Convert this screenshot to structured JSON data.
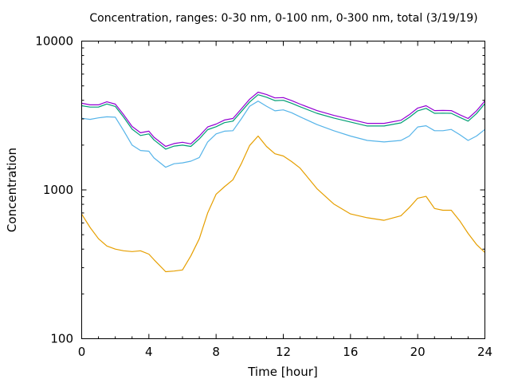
{
  "chart_data": {
    "type": "line",
    "title": "Concentration, ranges: 0-30 nm, 0-100 nm, 0-300 nm, total (3/19/19)",
    "xlabel": "Time [hour]",
    "ylabel": "Concentration",
    "xlim": [
      0,
      24
    ],
    "ylim": [
      100,
      10000
    ],
    "yscale": "log",
    "grid": false,
    "legend": "none",
    "xticks": [
      0,
      4,
      8,
      12,
      16,
      20,
      24
    ],
    "xtick_labels": [
      "0",
      "4",
      "8",
      "12",
      "16",
      "20",
      "24"
    ],
    "yticks": [
      100,
      1000,
      10000
    ],
    "ytick_labels": [
      "100",
      "1000",
      "10000"
    ],
    "x": [
      0,
      0.5,
      1,
      1.5,
      2,
      2.5,
      3,
      3.5,
      4,
      4.3,
      5,
      5.5,
      6,
      6.5,
      7,
      7.5,
      8,
      8.5,
      9,
      9.5,
      10,
      10.5,
      11,
      11.5,
      12,
      12.5,
      13,
      14,
      15,
      16,
      17,
      18,
      19,
      19.5,
      20,
      20.5,
      21,
      21.5,
      22,
      22.5,
      23,
      23.5,
      24
    ],
    "series": [
      {
        "name": "total",
        "color": "#9400d3",
        "values": [
          3820,
          3730,
          3730,
          3910,
          3770,
          3200,
          2670,
          2420,
          2480,
          2260,
          1960,
          2050,
          2090,
          2040,
          2300,
          2650,
          2770,
          2950,
          3020,
          3500,
          4070,
          4540,
          4380,
          4150,
          4170,
          3980,
          3770,
          3410,
          3170,
          2980,
          2800,
          2800,
          2940,
          3200,
          3550,
          3680,
          3410,
          3420,
          3410,
          3200,
          3020,
          3400,
          3960
        ]
      },
      {
        "name": "0-300 nm",
        "color": "#009e73",
        "values": [
          3680,
          3600,
          3600,
          3780,
          3640,
          3080,
          2560,
          2320,
          2380,
          2170,
          1880,
          1970,
          2000,
          1960,
          2200,
          2540,
          2660,
          2830,
          2900,
          3360,
          3900,
          4360,
          4200,
          3980,
          4000,
          3820,
          3620,
          3270,
          3040,
          2860,
          2690,
          2690,
          2820,
          3070,
          3400,
          3530,
          3270,
          3280,
          3270,
          3070,
          2900,
          3260,
          3800
        ]
      },
      {
        "name": "0-100 nm",
        "color": "#56b4e9",
        "values": [
          3030,
          2980,
          3050,
          3100,
          3080,
          2500,
          2000,
          1840,
          1820,
          1640,
          1420,
          1500,
          1520,
          1560,
          1650,
          2100,
          2380,
          2480,
          2500,
          3000,
          3650,
          3950,
          3650,
          3400,
          3450,
          3300,
          3100,
          2750,
          2500,
          2300,
          2150,
          2100,
          2150,
          2300,
          2650,
          2700,
          2500,
          2500,
          2550,
          2350,
          2150,
          2300,
          2550
        ]
      },
      {
        "name": "0-30 nm",
        "color": "#e69f00",
        "values": [
          688,
          560,
          470,
          420,
          400,
          390,
          385,
          390,
          370,
          340,
          282,
          285,
          290,
          360,
          470,
          700,
          935,
          1050,
          1170,
          1500,
          1990,
          2300,
          1960,
          1750,
          1690,
          1550,
          1400,
          1020,
          805,
          690,
          650,
          625,
          670,
          760,
          880,
          905,
          750,
          730,
          730,
          620,
          510,
          430,
          380
        ]
      }
    ]
  }
}
